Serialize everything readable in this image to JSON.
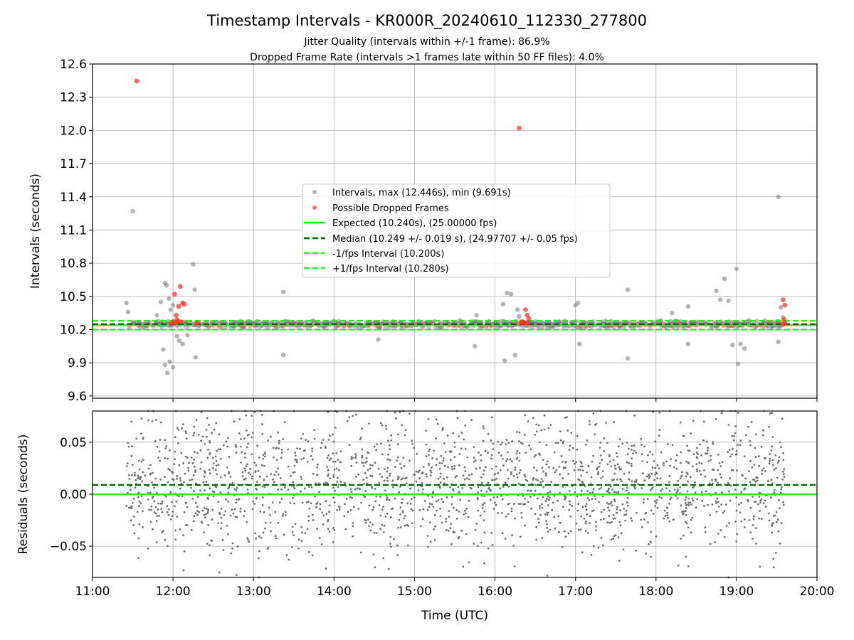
{
  "chart_data": [
    {
      "type": "scatter",
      "title": "Timestamp Intervals - KR000R_20240610_112330_277800",
      "subtitle_lines": [
        "Jitter Quality (intervals within +/-1 frame): 86.9%",
        "Dropped Frame Rate (intervals >1 frames late within 50 FF files): 4.0%"
      ],
      "xlabel": "",
      "ylabel": "Intervals (seconds)",
      "xlim": [
        11.0,
        20.0
      ],
      "ylim": [
        9.58,
        12.6
      ],
      "yticks": [
        9.6,
        9.9,
        10.2,
        10.5,
        10.8,
        11.1,
        11.4,
        11.7,
        12.0,
        12.3,
        12.6
      ],
      "ytick_labels": [
        "9.6",
        "9.9",
        "10.2",
        "10.5",
        "10.8",
        "11.1",
        "11.4",
        "11.7",
        "12.0",
        "12.3",
        "12.6"
      ],
      "grid": true,
      "legend_position": "center",
      "series": [
        {
          "name": "Intervals, max (12.446s), min (9.691s)",
          "color": "#808080",
          "x": [
            11.42,
            11.44,
            11.5,
            11.8,
            11.85,
            11.9,
            11.92,
            11.95,
            11.97,
            12.0,
            12.05,
            12.08,
            12.12,
            12.18,
            12.25,
            12.27,
            12.28,
            11.88,
            11.9,
            11.93,
            11.96,
            12.0,
            13.37,
            13.37,
            14.55,
            15.77,
            15.75,
            16.1,
            16.12,
            16.15,
            16.2,
            16.25,
            16.28,
            16.3,
            17.0,
            17.03,
            17.05,
            17.65,
            17.65,
            18.2,
            18.4,
            18.4,
            18.75,
            18.8,
            18.85,
            18.9,
            18.95,
            19.0,
            19.02,
            19.05,
            19.1,
            19.52,
            19.55,
            19.52,
            19.58
          ],
          "y": [
            10.44,
            10.36,
            11.27,
            10.33,
            10.45,
            10.62,
            10.6,
            10.48,
            10.38,
            10.42,
            10.14,
            10.1,
            10.07,
            10.15,
            10.79,
            10.56,
            9.95,
            10.02,
            9.88,
            9.81,
            9.91,
            9.86,
            10.54,
            9.97,
            10.11,
            10.33,
            10.05,
            10.43,
            9.92,
            10.53,
            10.52,
            9.97,
            10.38,
            10.32,
            10.42,
            10.44,
            10.07,
            10.56,
            9.94,
            10.35,
            10.41,
            10.07,
            10.55,
            10.47,
            10.66,
            10.46,
            10.06,
            10.75,
            9.89,
            10.07,
            10.03,
            11.4,
            10.4,
            10.09,
            10.31
          ],
          "band": {
            "xmin": 11.45,
            "xmax": 19.58,
            "ymin": 10.2,
            "ymax": 10.3
          }
        },
        {
          "name": "Possible Dropped Frames",
          "color": "#ff3333",
          "x": [
            11.55,
            11.98,
            12.0,
            12.02,
            12.04,
            12.05,
            12.07,
            12.09,
            12.1,
            12.12,
            12.14,
            12.03,
            12.06,
            12.3,
            16.3,
            16.32,
            16.35,
            16.38,
            16.4,
            16.42,
            16.33,
            16.37,
            16.41,
            19.58,
            19.6,
            19.59,
            19.6,
            19.58
          ],
          "y": [
            12.446,
            10.25,
            10.27,
            10.52,
            10.33,
            10.29,
            10.41,
            10.59,
            10.27,
            10.44,
            10.43,
            10.26,
            10.27,
            10.26,
            12.02,
            10.26,
            10.27,
            10.38,
            10.33,
            10.3,
            10.27,
            10.26,
            10.26,
            10.47,
            10.42,
            10.29,
            10.26,
            10.25
          ]
        },
        {
          "name": "Expected (10.240s), (25.00000 fps)",
          "color": "#22ee22",
          "style": "solid",
          "y": 10.24
        },
        {
          "name": "Median (10.249 +/- 0.019 s), (24.97707 +/- 0.05 fps)",
          "color": "#006400",
          "style": "dashed",
          "y": 10.249
        },
        {
          "name": "-1/fps Interval (10.200s)",
          "color": "#22ee22",
          "style": "dashed",
          "y": 10.2
        },
        {
          "name": "+1/fps Interval (10.280s)",
          "color": "#22ee22",
          "style": "dashed",
          "y": 10.28
        }
      ]
    },
    {
      "type": "scatter",
      "xlabel": "Time (UTC)",
      "ylabel": "Residuals (seconds)",
      "xlim": [
        11.0,
        20.0
      ],
      "ylim": [
        -0.08,
        0.08
      ],
      "xticks": [
        11,
        12,
        13,
        14,
        15,
        16,
        17,
        18,
        19,
        20
      ],
      "xtick_labels": [
        "11:00",
        "12:00",
        "13:00",
        "14:00",
        "15:00",
        "16:00",
        "17:00",
        "18:00",
        "19:00",
        "20:00"
      ],
      "yticks": [
        -0.05,
        0.0,
        0.05
      ],
      "ytick_labels": [
        "−0.05",
        "0.00",
        "0.05"
      ],
      "grid": true,
      "series": [
        {
          "name": "",
          "color": "#707070",
          "x_range": [
            11.42,
            19.6
          ],
          "y_range": [
            -0.08,
            0.08
          ],
          "approx_count": 2000
        },
        {
          "name": "",
          "color": "#006400",
          "style": "dashed",
          "y": 0.009
        },
        {
          "name": "",
          "color": "#22ee22",
          "style": "solid",
          "y": 0.0
        }
      ]
    }
  ]
}
